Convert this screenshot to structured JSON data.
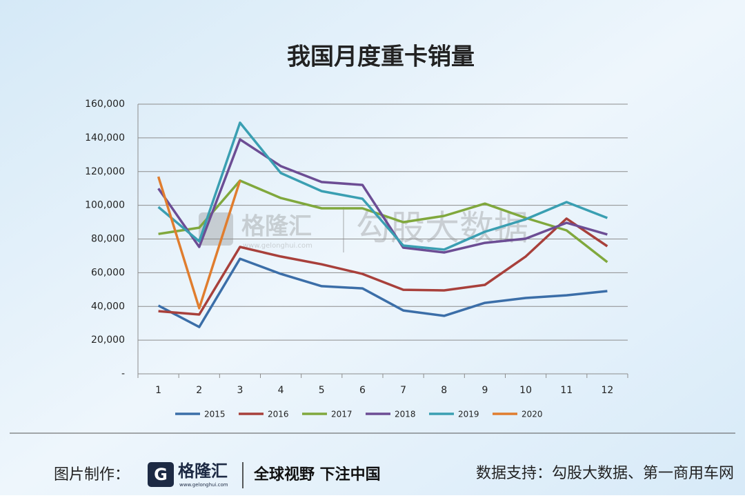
{
  "chart_data": {
    "type": "line",
    "title": "我国月度重卡销量",
    "categories": [
      "1",
      "2",
      "3",
      "4",
      "5",
      "6",
      "7",
      "8",
      "9",
      "10",
      "11",
      "12"
    ],
    "series": [
      {
        "name": "2015",
        "color": "#3b6ea8",
        "values": [
          40500,
          27800,
          68300,
          59300,
          52000,
          50700,
          37600,
          34400,
          42100,
          45000,
          46600,
          49100
        ]
      },
      {
        "name": "2016",
        "color": "#a8403b",
        "values": [
          37200,
          35200,
          75300,
          69600,
          65000,
          59300,
          49900,
          49500,
          52800,
          69600,
          92100,
          75700
        ]
      },
      {
        "name": "2017",
        "color": "#80a83d",
        "values": [
          83000,
          86700,
          114600,
          104300,
          98200,
          98200,
          90000,
          93700,
          101000,
          92500,
          85100,
          66300
        ]
      },
      {
        "name": "2018",
        "color": "#6c4d94",
        "values": [
          110000,
          75300,
          139100,
          123200,
          113800,
          112100,
          74900,
          72000,
          77700,
          80200,
          89600,
          82700
        ]
      },
      {
        "name": "2019",
        "color": "#3a9fb2",
        "values": [
          99000,
          78600,
          149000,
          119100,
          108400,
          103900,
          76100,
          73700,
          84300,
          91700,
          101900,
          92500
        ]
      },
      {
        "name": "2020",
        "color": "#e07d2e",
        "values": [
          117000,
          38900,
          114600,
          null,
          null,
          null,
          null,
          null,
          null,
          null,
          null,
          null
        ]
      }
    ],
    "ylim": [
      0,
      160000
    ],
    "yticks": [
      {
        "value": 0,
        "label": "-"
      },
      {
        "value": 20000,
        "label": "20,000"
      },
      {
        "value": 40000,
        "label": "40,000"
      },
      {
        "value": 60000,
        "label": "60,000"
      },
      {
        "value": 80000,
        "label": "80,000"
      },
      {
        "value": 100000,
        "label": "100,000"
      },
      {
        "value": 120000,
        "label": "120,000"
      },
      {
        "value": 140000,
        "label": "140,000"
      },
      {
        "value": 160000,
        "label": "160,000"
      }
    ],
    "grid": true,
    "legend": "bottom"
  },
  "watermark": {
    "brand": "格隆汇",
    "url": "www.gelonghui.com",
    "partner": "勾股大数据"
  },
  "footer": {
    "made_by": "图片制作：",
    "brand": "格隆汇",
    "url": "www.gelonghui.com",
    "slogan": "全球视野 下注中国",
    "source": "数据支持：勾股大数据、第一商用车网"
  }
}
